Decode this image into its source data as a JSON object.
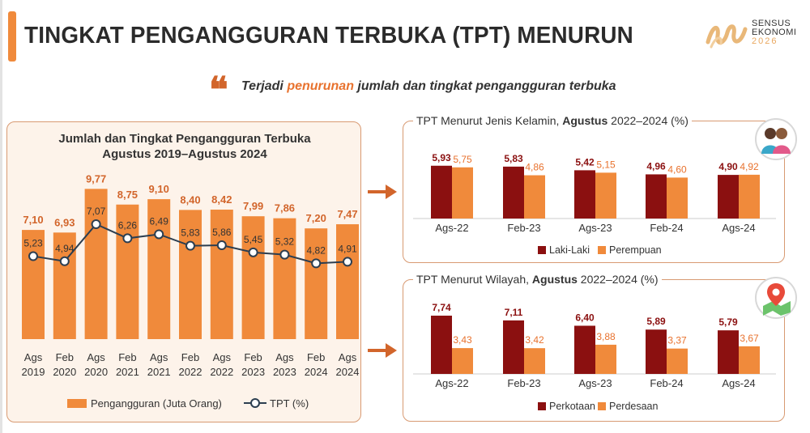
{
  "header": {
    "title": "TINGKAT PENGANGGURAN TERBUKA (TPT) MENURUN",
    "logo_line1": "SENSUS",
    "logo_line2": "EKONOMI",
    "logo_year": "2026"
  },
  "quote": {
    "mark": "❝",
    "before": "Terjadi ",
    "highlight": "penurunan",
    "after": " jumlah dan tingkat pengangguran terbuka"
  },
  "colors": {
    "orange": "#f08a3b",
    "dark_red": "#8b1010",
    "line": "#2c3e50",
    "accent": "#d2652b"
  },
  "chart_data": [
    {
      "type": "bar",
      "title_line1": "Jumlah dan Tingkat Pengangguran Terbuka",
      "title_line2": "Agustus 2019–Agustus 2024",
      "categories": [
        [
          "Ags",
          "2019"
        ],
        [
          "Feb",
          "2020"
        ],
        [
          "Ags",
          "2020"
        ],
        [
          "Feb",
          "2021"
        ],
        [
          "Ags",
          "2021"
        ],
        [
          "Feb",
          "2022"
        ],
        [
          "Ags",
          "2022"
        ],
        [
          "Feb",
          "2023"
        ],
        [
          "Ags",
          "2023"
        ],
        [
          "Feb",
          "2024"
        ],
        [
          "Ags",
          "2024"
        ]
      ],
      "series": [
        {
          "name": "Pengangguran (Juta Orang)",
          "kind": "bar",
          "values": [
            7.1,
            6.93,
            9.77,
            8.75,
            9.1,
            8.4,
            8.42,
            7.99,
            7.86,
            7.2,
            7.47
          ],
          "labels": [
            "7,10",
            "6,93",
            "9,77",
            "8,75",
            "9,10",
            "8,40",
            "8,42",
            "7,99",
            "7,86",
            "7,20",
            "7,47"
          ]
        },
        {
          "name": "TPT (%)",
          "kind": "line",
          "values": [
            5.23,
            4.94,
            7.07,
            6.26,
            6.49,
            5.83,
            5.86,
            5.45,
            5.32,
            4.82,
            4.91
          ],
          "labels": [
            "5,23",
            "4,94",
            "7,07",
            "6,26",
            "6,49",
            "5,83",
            "5,86",
            "5,45",
            "5,32",
            "4,82",
            "4,91"
          ]
        }
      ]
    },
    {
      "type": "bar",
      "title_plain": "TPT Menurut Jenis Kelamin, ",
      "title_bold": "Agustus",
      "title_rest": " 2022–2024  (%)",
      "categories": [
        "Ags-22",
        "Feb-23",
        "Ags-23",
        "Feb-24",
        "Ags-24"
      ],
      "series": [
        {
          "name": "Laki-Laki",
          "values": [
            5.93,
            5.83,
            5.42,
            4.96,
            4.9
          ],
          "labels": [
            "5,93",
            "5,83",
            "5,42",
            "4,96",
            "4,90"
          ]
        },
        {
          "name": "Perempuan",
          "values": [
            5.75,
            4.86,
            5.15,
            4.6,
            4.92
          ],
          "labels": [
            "5,75",
            "4,86",
            "5,15",
            "4,60",
            "4,92"
          ]
        }
      ]
    },
    {
      "type": "bar",
      "title_plain": "TPT Menurut Wilayah, ",
      "title_bold": "Agustus",
      "title_rest": " 2022–2024  (%)",
      "categories": [
        "Ags-22",
        "Feb-23",
        "Ags-23",
        "Feb-24",
        "Ags-24"
      ],
      "series": [
        {
          "name": "Perkotaan",
          "values": [
            7.74,
            7.11,
            6.4,
            5.89,
            5.79
          ],
          "labels": [
            "7,74",
            "7,11",
            "6,40",
            "5,89",
            "5,79"
          ]
        },
        {
          "name": "Perdesaan",
          "values": [
            3.43,
            3.42,
            3.88,
            3.37,
            3.67
          ],
          "labels": [
            "3,43",
            "3,42",
            "3,88",
            "3,37",
            "3,67"
          ]
        }
      ]
    }
  ],
  "icons": {
    "gender": "people-icon",
    "region": "map-pin-icon"
  }
}
